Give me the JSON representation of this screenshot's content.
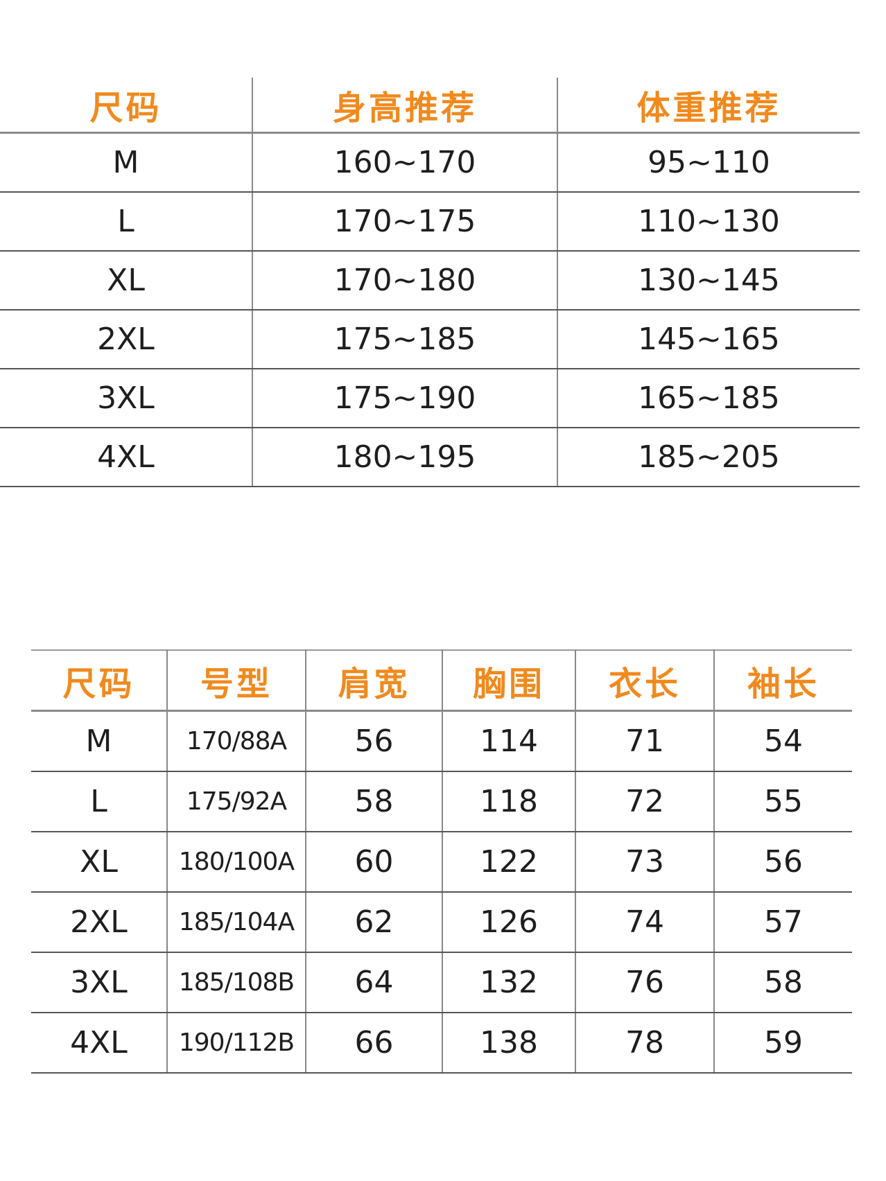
{
  "accent_color": "#f08a1e",
  "recommendation_table": {
    "headers": [
      "尺码",
      "身高推荐",
      "体重推荐"
    ],
    "rows": [
      [
        "M",
        "160~170",
        "95~110"
      ],
      [
        "L",
        "170~175",
        "110~130"
      ],
      [
        "XL",
        "170~180",
        "130~145"
      ],
      [
        "2XL",
        "175~185",
        "145~165"
      ],
      [
        "3XL",
        "175~190",
        "165~185"
      ],
      [
        "4XL",
        "180~195",
        "185~205"
      ]
    ]
  },
  "measurement_table": {
    "headers": [
      "尺码",
      "号型",
      "肩宽",
      "胸围",
      "衣长",
      "袖长"
    ],
    "rows": [
      [
        "M",
        "170/88A",
        "56",
        "114",
        "71",
        "54"
      ],
      [
        "L",
        "175/92A",
        "58",
        "118",
        "72",
        "55"
      ],
      [
        "XL",
        "180/100A",
        "60",
        "122",
        "73",
        "56"
      ],
      [
        "2XL",
        "185/104A",
        "62",
        "126",
        "74",
        "57"
      ],
      [
        "3XL",
        "185/108B",
        "64",
        "132",
        "76",
        "58"
      ],
      [
        "4XL",
        "190/112B",
        "66",
        "138",
        "78",
        "59"
      ]
    ]
  }
}
